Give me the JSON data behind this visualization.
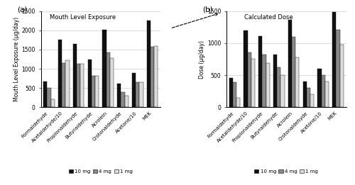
{
  "categories": [
    "Formaldehyde",
    "Acetaldehyde/10",
    "Propionaldehyde",
    "Butyraldehyde",
    "Acrolein",
    "Crotonaldehyde",
    "Acetone/10",
    "MEK"
  ],
  "panel_a": {
    "title": "Mouth Level Exposure",
    "ylabel": "Mouth Level Exposure (μg/day)",
    "ylim": [
      0,
      2500
    ],
    "yticks": [
      0,
      500,
      1000,
      1500,
      2000,
      2500
    ],
    "values_10mg": [
      670,
      1760,
      1650,
      1250,
      2010,
      610,
      890,
      2250
    ],
    "values_4mg": [
      510,
      1150,
      1130,
      810,
      1430,
      400,
      660,
      1570
    ],
    "values_1mg": [
      210,
      1230,
      1130,
      820,
      1280,
      310,
      660,
      1600
    ]
  },
  "panel_b": {
    "title": "Calculated Dose",
    "ylabel": "Dose (μg/day)",
    "ylim": [
      0,
      1500
    ],
    "yticks": [
      0,
      500,
      1000,
      1500
    ],
    "values_10mg": [
      460,
      1200,
      1110,
      820,
      1360,
      400,
      600,
      1490
    ],
    "values_4mg": [
      390,
      860,
      820,
      620,
      1100,
      300,
      500,
      1210
    ],
    "values_1mg": [
      150,
      760,
      690,
      500,
      780,
      200,
      400,
      980
    ]
  },
  "colors": {
    "10mg": "#111111",
    "4mg": "#888888",
    "1mg": "#dddddd"
  },
  "legend_labels": [
    "10 mg",
    "4 mg",
    "1 mg"
  ],
  "bar_width": 0.25,
  "label_a": "(a)",
  "label_b": "(b)"
}
